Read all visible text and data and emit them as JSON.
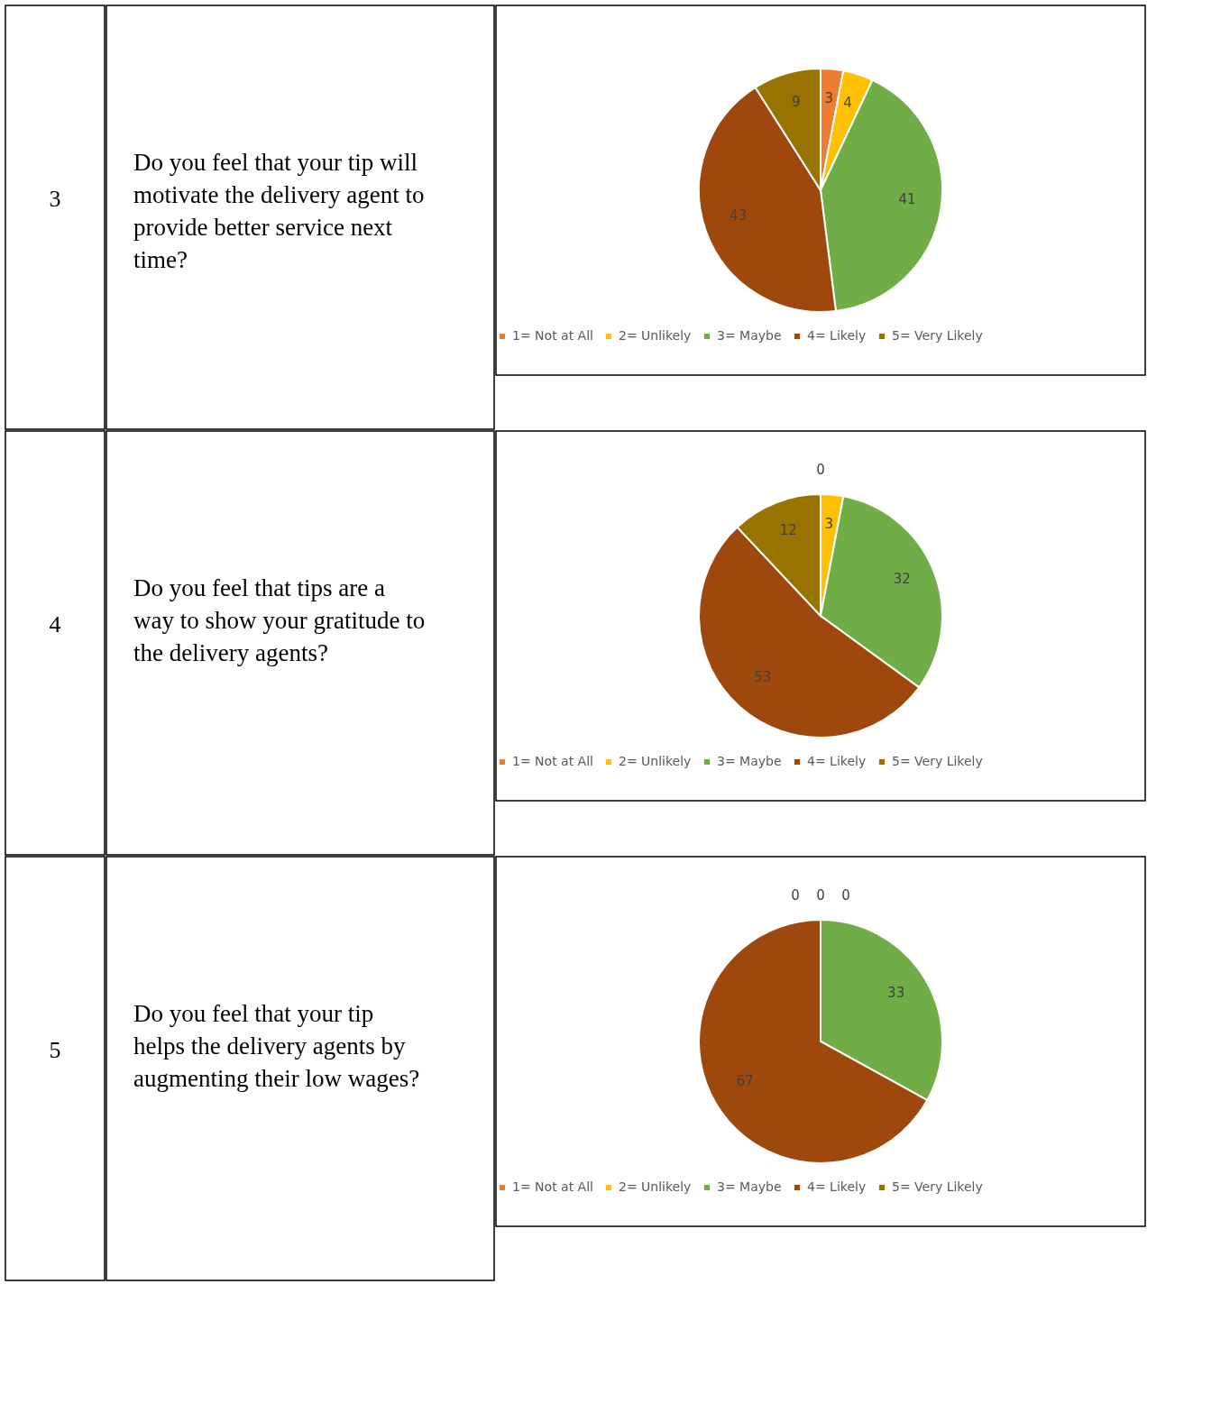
{
  "chart_data": [
    {
      "type": "pie",
      "title": "Do you feel that your tip will motivate the delivery agent to provide better service next time?",
      "annotations": [
        "3"
      ],
      "categories": [
        "1= Not at All",
        "2= Unlikely",
        "3= Maybe",
        "4= Likely",
        "5= Very Likely"
      ],
      "values": [
        3,
        4,
        41,
        43,
        9
      ],
      "colors": [
        "#ed7d31",
        "#ffc000",
        "#70ad47",
        "#9e480e",
        "#997300"
      ],
      "data_labels": true,
      "legend": "bottom"
    },
    {
      "type": "pie",
      "title": "Do you feel that tips are a way to show your gratitude to the delivery agents?",
      "annotations": [
        "4"
      ],
      "categories": [
        "1= Not at All",
        "2= Unlikely",
        "3= Maybe",
        "4= Likely",
        "5= Very Likely"
      ],
      "values": [
        0,
        3,
        32,
        53,
        12
      ],
      "value_labels": [
        "0",
        "3",
        "32",
        "53",
        "12"
      ],
      "colors": [
        "#ed7d31",
        "#ffc000",
        "#70ad47",
        "#9e480e",
        "#997300"
      ],
      "legend": "bottom"
    },
    {
      "type": "pie",
      "title": "Do you feel that your tip helps the delivery agents by augmenting their low wages?",
      "annotations": [
        "5"
      ],
      "categories": [
        "1= Not at All",
        "2= Unlikely",
        "3= Maybe",
        "4= Likely",
        "5= Very Likely"
      ],
      "values": [
        0,
        0,
        33,
        67,
        0
      ],
      "value_labels": [
        "0",
        "0",
        "33",
        "67",
        "0"
      ],
      "colors": [
        "#ed7d31",
        "#ffc000",
        "#70ad47",
        "#9e480e",
        "#997300"
      ],
      "legend": "bottom"
    }
  ]
}
